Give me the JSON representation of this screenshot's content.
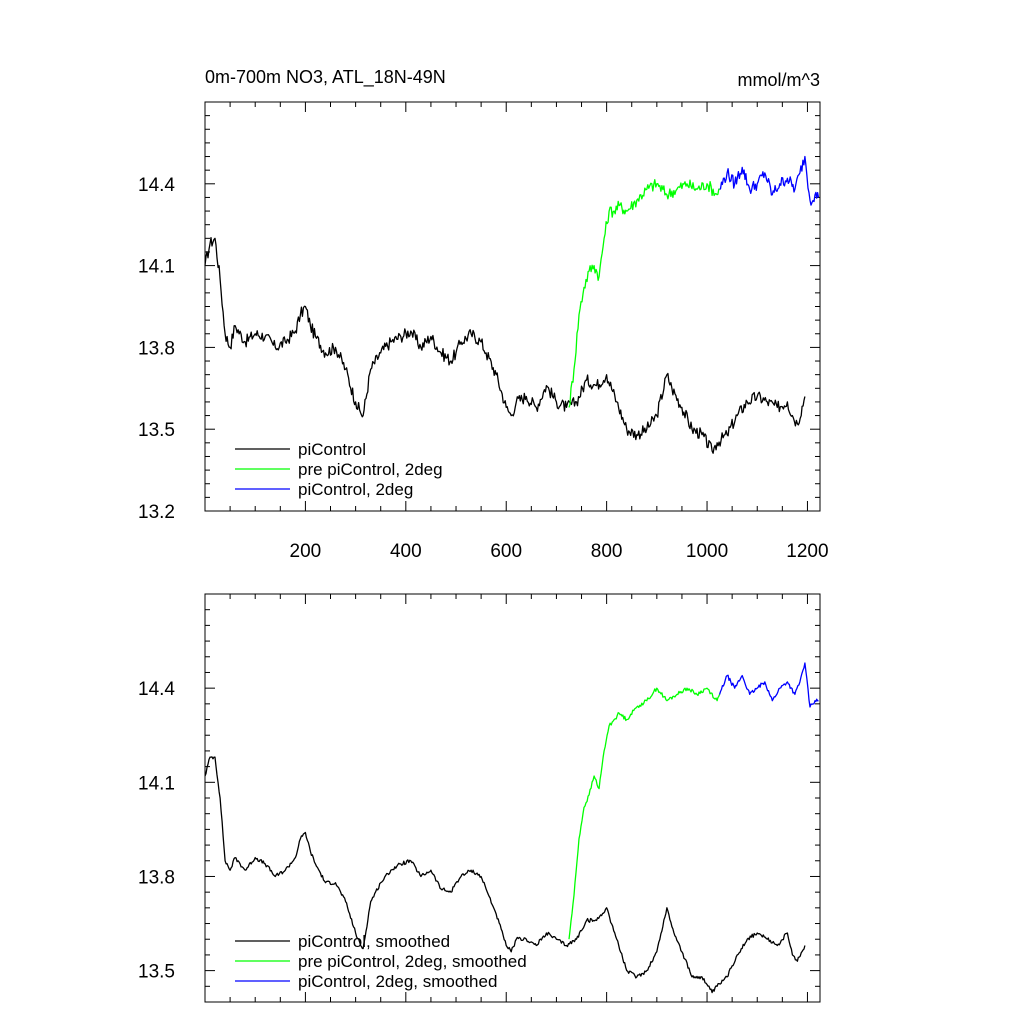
{
  "chart_data": [
    {
      "type": "line",
      "title": "0m-700m NO3, ATL_18N-49N",
      "units": "mmol/m^3",
      "xlim": [
        0,
        1225
      ],
      "ylim": [
        13.2,
        14.7
      ],
      "xticks": [
        200,
        400,
        600,
        800,
        1000,
        1200
      ],
      "xtick_labels": [
        "200",
        "400",
        "600",
        "800",
        "1000",
        "1200"
      ],
      "yticks": [
        13.2,
        13.5,
        13.8,
        14.1,
        14.4
      ],
      "ytick_labels": [
        "13.2",
        "13.5",
        "13.8",
        "14.1",
        "14.4"
      ],
      "legend_position": "bottom-left",
      "grid": false,
      "series": [
        {
          "name": "piControl",
          "color": "#000000",
          "x": [
            0,
            10,
            20,
            30,
            40,
            50,
            60,
            80,
            100,
            120,
            140,
            160,
            180,
            190,
            200,
            210,
            220,
            240,
            260,
            280,
            300,
            310,
            315,
            330,
            350,
            370,
            390,
            410,
            430,
            450,
            470,
            490,
            500,
            510,
            530,
            550,
            560,
            580,
            600,
            610,
            620,
            640,
            660,
            680,
            700,
            720,
            740,
            760,
            780,
            800,
            820,
            840,
            860,
            880,
            900,
            920,
            930,
            950,
            970,
            990,
            1010,
            1020,
            1040,
            1060,
            1080,
            1100,
            1120,
            1140,
            1160,
            1170,
            1180,
            1195
          ],
          "y": [
            14.1,
            14.18,
            14.2,
            14.05,
            13.85,
            13.8,
            13.88,
            13.82,
            13.85,
            13.84,
            13.8,
            13.82,
            13.86,
            13.92,
            13.95,
            13.88,
            13.84,
            13.78,
            13.8,
            13.72,
            13.6,
            13.56,
            13.55,
            13.72,
            13.78,
            13.82,
            13.84,
            13.86,
            13.8,
            13.84,
            13.78,
            13.75,
            13.78,
            13.82,
            13.85,
            13.82,
            13.78,
            13.7,
            13.58,
            13.55,
            13.6,
            13.62,
            13.58,
            13.66,
            13.6,
            13.58,
            13.6,
            13.68,
            13.66,
            13.7,
            13.6,
            13.5,
            13.48,
            13.5,
            13.55,
            13.7,
            13.65,
            13.58,
            13.5,
            13.48,
            13.42,
            13.45,
            13.48,
            13.55,
            13.6,
            13.62,
            13.6,
            13.58,
            13.6,
            13.55,
            13.52,
            13.62
          ]
        },
        {
          "name": "pre piControl, 2deg",
          "color": "#00ff00",
          "x": [
            725,
            735,
            745,
            755,
            765,
            775,
            785,
            795,
            805,
            815,
            825,
            840,
            860,
            880,
            900,
            920,
            940,
            960,
            980,
            1000,
            1020,
            1025
          ],
          "y": [
            13.58,
            13.72,
            13.92,
            14.02,
            14.08,
            14.1,
            14.06,
            14.2,
            14.3,
            14.3,
            14.32,
            14.3,
            14.34,
            14.38,
            14.4,
            14.36,
            14.38,
            14.4,
            14.38,
            14.4,
            14.36,
            14.38
          ]
        },
        {
          "name": "piControl, 2deg",
          "color": "#0000ff",
          "x": [
            1025,
            1040,
            1055,
            1070,
            1085,
            1100,
            1115,
            1130,
            1145,
            1160,
            1175,
            1185,
            1195,
            1205,
            1215,
            1222
          ],
          "y": [
            14.38,
            14.44,
            14.4,
            14.46,
            14.38,
            14.4,
            14.44,
            14.36,
            14.4,
            14.42,
            14.38,
            14.44,
            14.5,
            14.34,
            14.36,
            14.35
          ]
        }
      ]
    },
    {
      "type": "line",
      "title": "",
      "xlim": [
        0,
        1225
      ],
      "ylim": [
        13.4,
        14.7
      ],
      "xticks": [
        200,
        400,
        600,
        800,
        1000,
        1200
      ],
      "yticks": [
        13.5,
        13.8,
        14.1,
        14.4
      ],
      "ytick_labels": [
        "13.5",
        "13.8",
        "14.1",
        "14.4"
      ],
      "legend_position": "bottom-left",
      "grid": false,
      "series": [
        {
          "name": "piControl, smoothed",
          "color": "#000000",
          "x": [
            0,
            10,
            20,
            30,
            40,
            50,
            60,
            80,
            100,
            120,
            140,
            160,
            180,
            190,
            200,
            210,
            220,
            240,
            260,
            280,
            300,
            310,
            315,
            330,
            350,
            370,
            390,
            410,
            430,
            450,
            470,
            490,
            500,
            510,
            530,
            550,
            560,
            580,
            600,
            610,
            620,
            640,
            660,
            680,
            700,
            720,
            740,
            760,
            780,
            800,
            820,
            840,
            860,
            880,
            900,
            920,
            930,
            950,
            970,
            990,
            1010,
            1020,
            1040,
            1060,
            1080,
            1100,
            1120,
            1140,
            1160,
            1170,
            1180,
            1195
          ],
          "y": [
            14.12,
            14.18,
            14.18,
            14.05,
            13.85,
            13.82,
            13.86,
            13.82,
            13.86,
            13.84,
            13.8,
            13.82,
            13.86,
            13.92,
            13.94,
            13.88,
            13.84,
            13.78,
            13.78,
            13.72,
            13.62,
            13.58,
            13.57,
            13.72,
            13.78,
            13.82,
            13.84,
            13.85,
            13.8,
            13.82,
            13.76,
            13.75,
            13.78,
            13.8,
            13.82,
            13.8,
            13.76,
            13.68,
            13.58,
            13.56,
            13.6,
            13.6,
            13.58,
            13.62,
            13.6,
            13.58,
            13.6,
            13.66,
            13.66,
            13.7,
            13.6,
            13.5,
            13.48,
            13.5,
            13.56,
            13.7,
            13.64,
            13.56,
            13.48,
            13.48,
            13.43,
            13.45,
            13.48,
            13.55,
            13.6,
            13.62,
            13.6,
            13.58,
            13.62,
            13.55,
            13.53,
            13.58
          ]
        },
        {
          "name": "pre piControl, 2deg, smoothed",
          "color": "#00ff00",
          "x": [
            725,
            735,
            745,
            755,
            765,
            775,
            785,
            795,
            805,
            815,
            825,
            840,
            860,
            880,
            900,
            920,
            940,
            960,
            980,
            1000,
            1020,
            1025
          ],
          "y": [
            13.6,
            13.74,
            13.92,
            14.02,
            14.06,
            14.12,
            14.08,
            14.2,
            14.28,
            14.3,
            14.32,
            14.3,
            14.34,
            14.36,
            14.4,
            14.36,
            14.38,
            14.4,
            14.38,
            14.4,
            14.36,
            14.38
          ]
        },
        {
          "name": "piControl, 2deg, smoothed",
          "color": "#0000ff",
          "x": [
            1025,
            1040,
            1055,
            1070,
            1085,
            1100,
            1115,
            1130,
            1145,
            1160,
            1175,
            1185,
            1195,
            1205,
            1215,
            1222
          ],
          "y": [
            14.38,
            14.44,
            14.4,
            14.44,
            14.38,
            14.4,
            14.42,
            14.36,
            14.4,
            14.42,
            14.38,
            14.42,
            14.48,
            14.34,
            14.36,
            14.36
          ]
        }
      ]
    }
  ]
}
